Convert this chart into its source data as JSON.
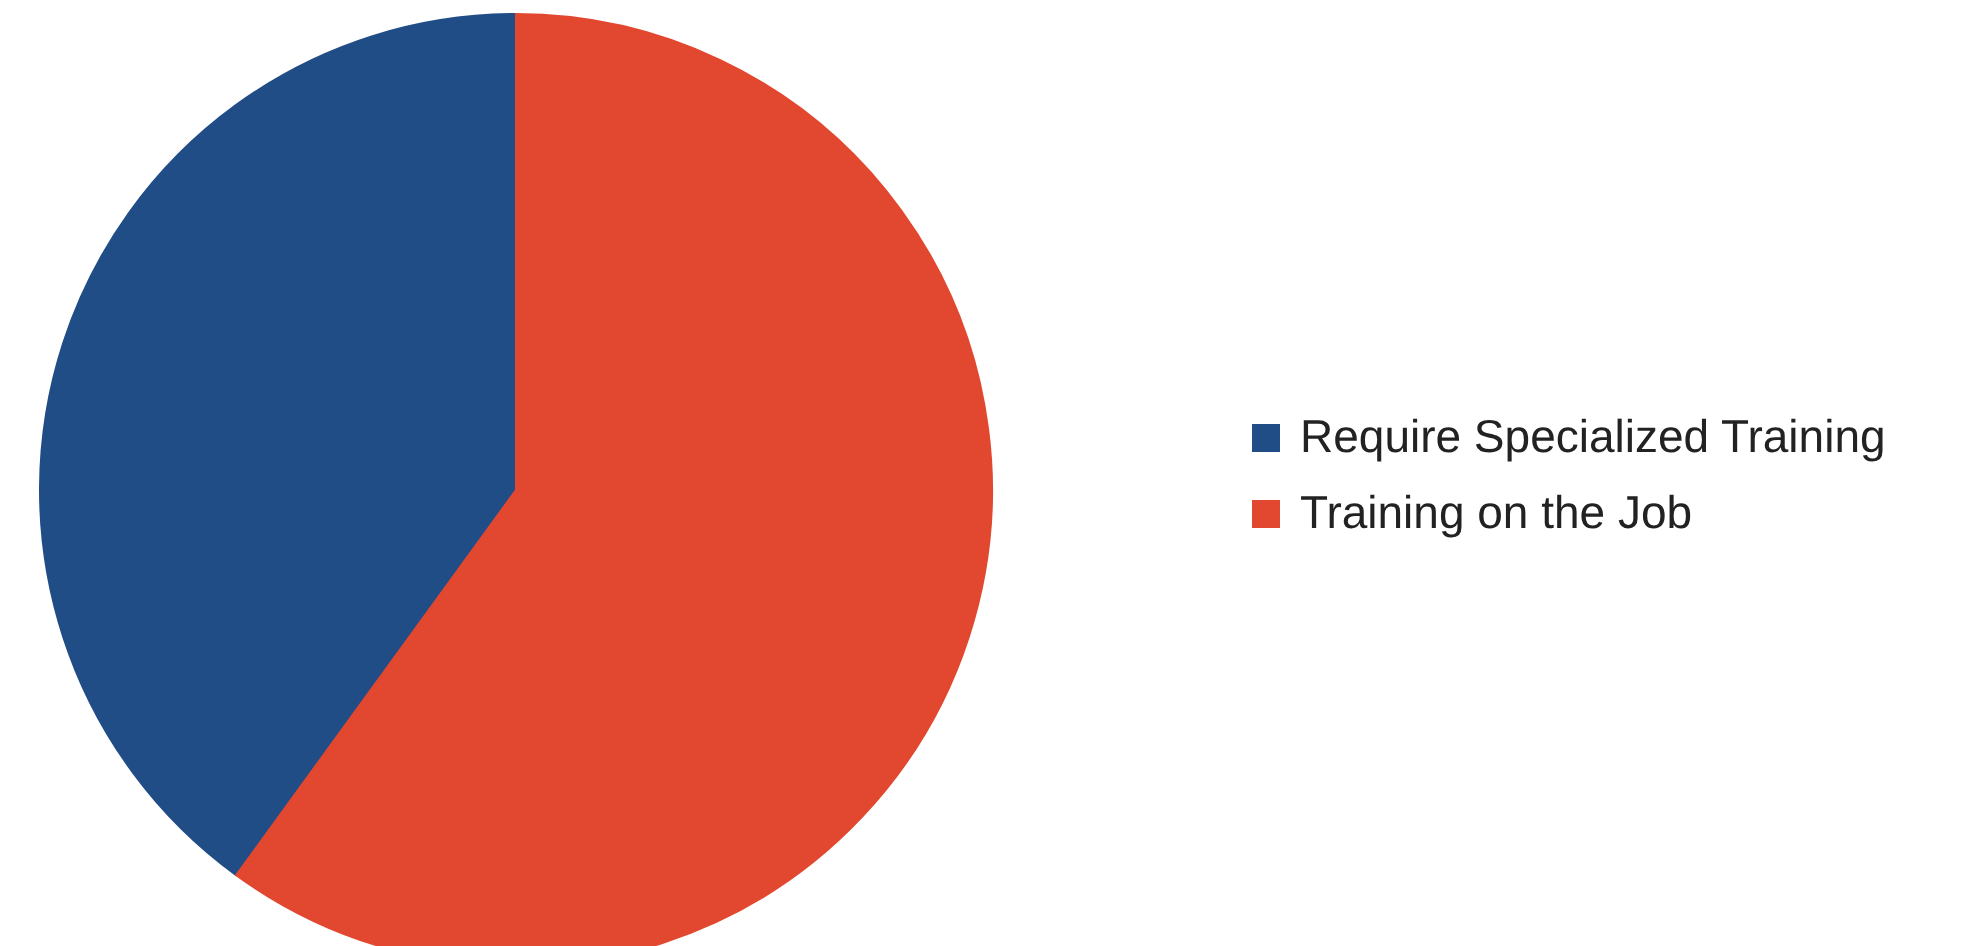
{
  "chart_data": {
    "type": "pie",
    "categories": [
      "Require Specialized Training",
      "Training on the Job"
    ],
    "values": [
      40,
      60
    ],
    "colors": [
      "#214d87",
      "#e2482f"
    ],
    "legend": "right"
  }
}
